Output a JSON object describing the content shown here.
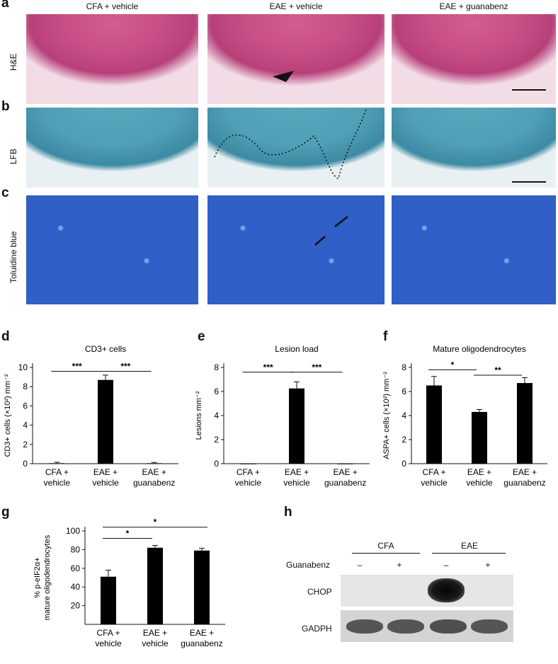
{
  "panel_letters": {
    "a": "a",
    "b": "b",
    "c": "c",
    "d": "d",
    "e": "e",
    "f": "f",
    "g": "g",
    "h": "h"
  },
  "column_titles": [
    "CFA + vehicle",
    "EAE + vehicle",
    "EAE + guanabenz"
  ],
  "row_labels": {
    "he": "H&E",
    "lfb": "LFB",
    "tb": "Toluidine blue"
  },
  "colors": {
    "he": "#c94f86",
    "lfb": "#4f9fb6",
    "tb": "#2f5fc7",
    "bar": "#000000"
  },
  "chart_data": [
    {
      "id": "d",
      "type": "bar",
      "title": "CD3+ cells",
      "ylabel": "CD3+ cells (×10²) mm⁻²",
      "categories": [
        [
          "CFA +",
          "vehicle"
        ],
        [
          "EAE +",
          "vehicle"
        ],
        [
          "EAE +",
          "guanabenz"
        ]
      ],
      "values": [
        0.05,
        8.7,
        0.05
      ],
      "errors": [
        0.1,
        0.5,
        0.08
      ],
      "ylim": [
        0,
        10
      ],
      "yticks": [
        0,
        2,
        4,
        6,
        8,
        10
      ],
      "significance": [
        {
          "from": 0,
          "to": 1,
          "label": "***",
          "y": 9.6
        },
        {
          "from": 1,
          "to": 2,
          "label": "***",
          "y": 9.6
        }
      ]
    },
    {
      "id": "e",
      "type": "bar",
      "title": "Lesion load",
      "ylabel": "Lesions mm⁻²",
      "categories": [
        [
          "CFA +",
          "vehicle"
        ],
        [
          "EAE +",
          "vehicle"
        ],
        [
          "EAE +",
          "guanabenz"
        ]
      ],
      "values": [
        0,
        6.25,
        0
      ],
      "errors": [
        0,
        0.55,
        0
      ],
      "ylim": [
        0,
        8
      ],
      "yticks": [
        0,
        2,
        4,
        6,
        8
      ],
      "significance": [
        {
          "from": 0,
          "to": 1,
          "label": "***",
          "y": 7.6
        },
        {
          "from": 1,
          "to": 2,
          "label": "***",
          "y": 7.6
        }
      ]
    },
    {
      "id": "f",
      "type": "bar",
      "title": "Mature oligodendrocytes",
      "ylabel": "ASPA+ cells (×10²) mm⁻²",
      "categories": [
        [
          "CFA +",
          "vehicle"
        ],
        [
          "EAE +",
          "vehicle"
        ],
        [
          "EAE +",
          "guanabenz"
        ]
      ],
      "values": [
        6.5,
        4.3,
        6.7
      ],
      "errors": [
        0.75,
        0.2,
        0.45
      ],
      "ylim": [
        0,
        8
      ],
      "yticks": [
        0,
        2,
        4,
        6,
        8
      ],
      "significance": [
        {
          "from": 0,
          "to": 1,
          "label": "*",
          "y": 7.8
        },
        {
          "from": 1,
          "to": 2,
          "label": "**",
          "y": 7.35
        }
      ]
    },
    {
      "id": "g",
      "type": "bar",
      "title": "",
      "ylabel": "% p-eIF2α+ mature oligodendrocytes",
      "categories": [
        [
          "CFA +",
          "vehicle"
        ],
        [
          "EAE +",
          "vehicle"
        ],
        [
          "EAE +",
          "guanabenz"
        ]
      ],
      "values": [
        51,
        82,
        79
      ],
      "errors": [
        7,
        2.5,
        2.5
      ],
      "ylim": [
        0,
        100
      ],
      "yticks": [
        20,
        40,
        60,
        80,
        100
      ],
      "significance": [
        {
          "from": 0,
          "to": 1,
          "label": "*",
          "y": 92
        },
        {
          "from": 0,
          "to": 2,
          "label": "*",
          "y": 104
        }
      ]
    }
  ],
  "blot": {
    "groups": [
      "CFA",
      "EAE"
    ],
    "treatment_label": "Guanabenz",
    "treatment_marks": [
      "–",
      "+",
      "–",
      "+"
    ],
    "rows": [
      "CHOP",
      "GADPH"
    ]
  }
}
